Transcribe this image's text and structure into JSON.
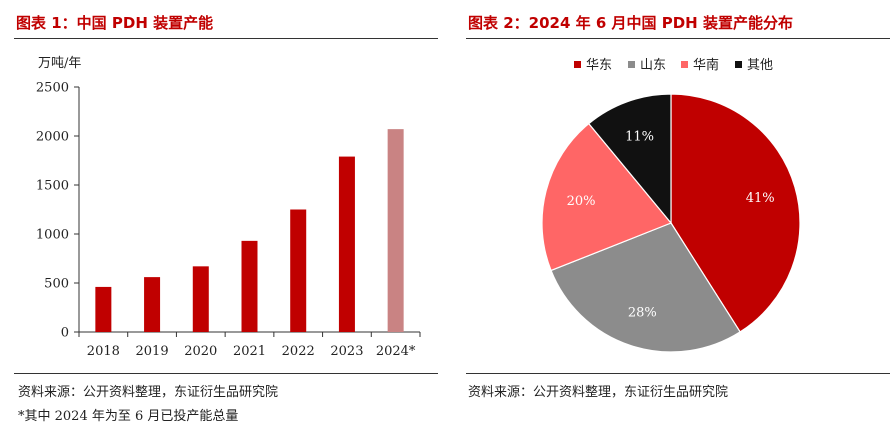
{
  "left": {
    "title": "图表 1：中国 PDH 装置产能",
    "source": "资料来源：公开资料整理，东证衍生品研究院",
    "note": "*其中 2024 年为至 6 月已投产能总量"
  },
  "right": {
    "title": "图表 2：2024 年 6 月中国 PDH 装置产能分布",
    "source": "资料来源：公开资料整理，东证衍生品研究院"
  },
  "colors": {
    "bar": "#c00000",
    "bar_partial": "#c98383",
    "huanan": "#ff6666",
    "shandong": "#8c8c8c",
    "huadong": "#c00000",
    "qita": "#111111"
  },
  "chart_data": [
    {
      "type": "bar",
      "title": "中国 PDH 装置产能",
      "ylabel": "万吨/年",
      "xlabel": "",
      "categories": [
        "2018",
        "2019",
        "2020",
        "2021",
        "2022",
        "2023",
        "2024*"
      ],
      "values": [
        460,
        560,
        670,
        930,
        1250,
        1790,
        2070
      ],
      "ylim": [
        0,
        2500
      ],
      "yticks": [
        "0",
        "500",
        "1000",
        "1500",
        "2000",
        "2500"
      ],
      "grid": false
    },
    {
      "type": "pie",
      "title": "2024 年 6 月中国 PDH 装置产能分布",
      "legend_position": "top",
      "slices": [
        {
          "name": "华东",
          "value": 41,
          "label": "41%",
          "color": "#c00000"
        },
        {
          "name": "山东",
          "value": 28,
          "label": "28%",
          "color": "#8c8c8c"
        },
        {
          "name": "华南",
          "value": 20,
          "label": "20%",
          "color": "#ff6666"
        },
        {
          "name": "其他",
          "value": 11,
          "label": "11%",
          "color": "#111111"
        }
      ]
    }
  ]
}
